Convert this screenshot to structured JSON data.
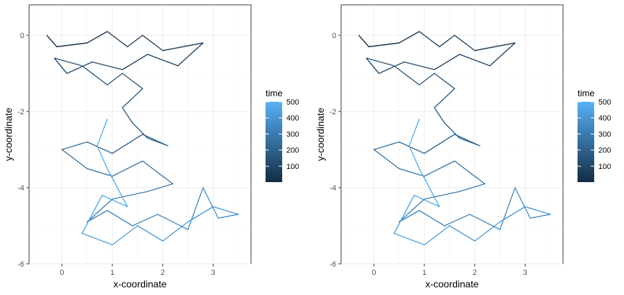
{
  "chart_data": [
    {
      "type": "line",
      "xlabel": "x-coordinate",
      "ylabel": "y-coordinate",
      "xlim": [
        -0.65,
        3.75
      ],
      "ylim": [
        -6.0,
        0.8
      ],
      "x_ticks": [
        0,
        1,
        2,
        3
      ],
      "y_ticks": [
        -6,
        -4,
        -2,
        0
      ],
      "grid": true,
      "color_scale": {
        "title": "time",
        "low_color": "#132B43",
        "high_color": "#56B1F7",
        "range": [
          1,
          500
        ],
        "breaks": [
          100,
          200,
          300,
          400,
          500
        ]
      },
      "series": [
        {
          "t": [
            1,
            10,
            20,
            30,
            40,
            50,
            60,
            70,
            80,
            90,
            100,
            110,
            120,
            130,
            140,
            150,
            160,
            170,
            180,
            190,
            200,
            210,
            220,
            230,
            240,
            250,
            260,
            270,
            280,
            290,
            300,
            310,
            320,
            330,
            340,
            350,
            360,
            370,
            380,
            390,
            400,
            410,
            420,
            430,
            440,
            450,
            460,
            470,
            480,
            490,
            500
          ],
          "x": [
            -0.3,
            -0.1,
            0.5,
            0.9,
            1.3,
            1.6,
            2.0,
            2.8,
            2.3,
            1.7,
            1.2,
            0.6,
            0.1,
            -0.15,
            0.4,
            0.9,
            1.2,
            1.6,
            1.2,
            1.4,
            1.7,
            2.1,
            1.6,
            1.0,
            0.5,
            0.0,
            0.5,
            1.0,
            1.6,
            2.2,
            1.7,
            1.0,
            0.5,
            0.9,
            1.4,
            1.9,
            2.5,
            2.8,
            3.1,
            3.5,
            3.0,
            2.5,
            2.0,
            1.5,
            1.0,
            0.4,
            0.8,
            1.3,
            0.9,
            0.7,
            0.9
          ],
          "y": [
            0.0,
            -0.3,
            -0.2,
            0.1,
            -0.3,
            0.0,
            -0.4,
            -0.2,
            -0.8,
            -0.5,
            -0.9,
            -0.7,
            -1.0,
            -0.6,
            -0.8,
            -1.3,
            -1.0,
            -1.4,
            -1.9,
            -2.3,
            -2.7,
            -2.9,
            -2.6,
            -3.1,
            -2.8,
            -3.0,
            -3.5,
            -3.7,
            -3.3,
            -3.9,
            -4.1,
            -4.3,
            -4.9,
            -4.6,
            -5.0,
            -4.7,
            -5.1,
            -4.0,
            -4.8,
            -4.7,
            -4.5,
            -4.9,
            -5.4,
            -5.0,
            -5.5,
            -5.2,
            -4.2,
            -4.5,
            -3.5,
            -2.9,
            -2.2
          ]
        }
      ]
    },
    {
      "type": "line",
      "xlabel": "x-coordinate",
      "ylabel": "y-coordinate",
      "xlim": [
        -0.65,
        3.75
      ],
      "ylim": [
        -6.0,
        0.8
      ],
      "x_ticks": [
        0,
        1,
        2,
        3
      ],
      "y_ticks": [
        -6,
        -4,
        -2,
        0
      ],
      "grid": true,
      "color_scale": {
        "title": "time",
        "low_color": "#132B43",
        "high_color": "#56B1F7",
        "range": [
          1,
          500
        ],
        "breaks": [
          100,
          200,
          300,
          400,
          500
        ]
      },
      "series": [
        {
          "t": [
            1,
            10,
            20,
            30,
            40,
            50,
            60,
            70,
            80,
            90,
            100,
            110,
            120,
            130,
            140,
            150,
            160,
            170,
            180,
            190,
            200,
            210,
            220,
            230,
            240,
            250,
            260,
            270,
            280,
            290,
            300,
            310,
            320,
            330,
            340,
            350,
            360,
            370,
            380,
            390,
            400,
            410,
            420,
            430,
            440,
            450,
            460,
            470,
            480,
            490,
            500
          ],
          "x": [
            -0.3,
            -0.1,
            0.5,
            0.9,
            1.3,
            1.6,
            2.0,
            2.8,
            2.3,
            1.7,
            1.2,
            0.6,
            0.1,
            -0.15,
            0.4,
            0.9,
            1.2,
            1.6,
            1.2,
            1.4,
            1.7,
            2.1,
            1.6,
            1.0,
            0.5,
            0.0,
            0.5,
            1.0,
            1.6,
            2.2,
            1.7,
            1.0,
            0.5,
            0.9,
            1.4,
            1.9,
            2.5,
            2.8,
            3.1,
            3.5,
            3.0,
            2.5,
            2.0,
            1.5,
            1.0,
            0.4,
            0.8,
            1.3,
            0.9,
            0.7,
            0.9
          ],
          "y": [
            0.0,
            -0.3,
            -0.2,
            0.1,
            -0.3,
            0.0,
            -0.4,
            -0.2,
            -0.8,
            -0.5,
            -0.9,
            -0.7,
            -1.0,
            -0.6,
            -0.8,
            -1.3,
            -1.0,
            -1.4,
            -1.9,
            -2.3,
            -2.7,
            -2.9,
            -2.6,
            -3.1,
            -2.8,
            -3.0,
            -3.5,
            -3.7,
            -3.3,
            -3.9,
            -4.1,
            -4.3,
            -4.9,
            -4.6,
            -5.0,
            -4.7,
            -5.1,
            -4.0,
            -4.8,
            -4.7,
            -4.5,
            -4.9,
            -5.4,
            -5.0,
            -5.5,
            -5.2,
            -4.2,
            -4.5,
            -3.5,
            -2.9,
            -2.2
          ]
        }
      ]
    }
  ]
}
